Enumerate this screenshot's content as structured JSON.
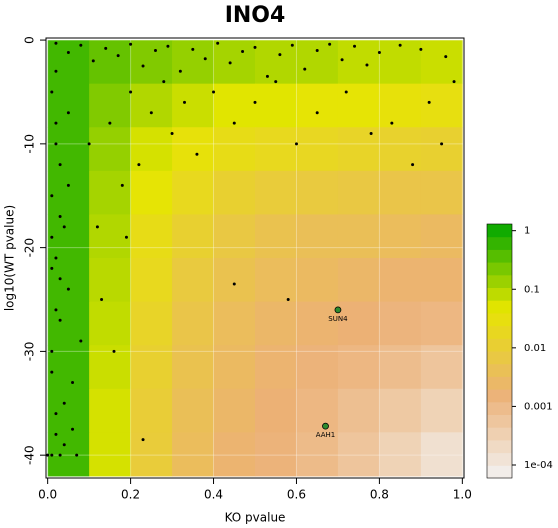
{
  "chart_data": {
    "type": "heatmap-scatter",
    "title": "INO4",
    "x_label": "KO pvalue",
    "y_label": "log10(WT pvalue)",
    "xlim": [
      -0.004,
      1.004
    ],
    "ylim": [
      -42.2,
      0.2
    ],
    "xticks": [
      {
        "value": 0,
        "label": "0.0"
      },
      0.2,
      0.4,
      0.6,
      0.8,
      {
        "value": 1,
        "label": "1.0"
      }
    ],
    "yticks": [
      0,
      -10,
      -20,
      -30,
      -40
    ],
    "heatmap": {
      "x_edges": [
        0,
        0.1,
        0.2,
        0.3,
        0.4,
        0.5,
        0.6,
        0.7,
        0.8,
        0.9,
        1
      ],
      "y_edges": [
        0,
        -4.2,
        -8.4,
        -12.6,
        -16.8,
        -21,
        -25.2,
        -29.4,
        -33.6,
        -37.8,
        -42
      ],
      "values": [
        [
          0.5,
          0.3,
          0.2,
          0.15,
          0.12,
          0.1,
          0.1,
          0.08,
          0.08,
          0.07
        ],
        [
          0.5,
          0.2,
          0.1,
          0.07,
          0.05,
          0.05,
          0.04,
          0.04,
          0.035,
          0.03
        ],
        [
          0.5,
          0.15,
          0.06,
          0.035,
          0.025,
          0.02,
          0.018,
          0.015,
          0.013,
          0.012
        ],
        [
          0.5,
          0.12,
          0.04,
          0.02,
          0.012,
          0.009,
          0.008,
          0.007,
          0.006,
          0.006
        ],
        [
          0.5,
          0.1,
          0.025,
          0.012,
          0.007,
          0.005,
          0.004,
          0.004,
          0.0035,
          0.003
        ],
        [
          0.5,
          0.09,
          0.02,
          0.008,
          0.005,
          0.0035,
          0.003,
          0.0025,
          0.002,
          0.002
        ],
        [
          0.5,
          0.08,
          0.015,
          0.006,
          0.0035,
          0.0025,
          0.002,
          0.0017,
          0.0014,
          0.0012
        ],
        [
          0.5,
          0.07,
          0.012,
          0.005,
          0.003,
          0.002,
          0.0015,
          0.0012,
          0.0009,
          0.0006
        ],
        [
          0.5,
          0.06,
          0.01,
          0.004,
          0.0025,
          0.0017,
          0.0012,
          0.0008,
          0.0005,
          0.0003
        ],
        [
          0.5,
          0.06,
          0.009,
          0.0035,
          0.002,
          0.0015,
          0.001,
          0.0006,
          0.0003,
          0.00015
        ]
      ]
    },
    "color_stops": [
      "#F2F2F2",
      "#ECB176",
      "#E6E600",
      "#00A600"
    ],
    "colorbar_lim": [
      6e-05,
      1.3
    ],
    "colorbar_ticks": [
      1,
      0.1,
      0.01,
      0.001,
      {
        "value": 0.0001,
        "label": "1e-04"
      }
    ],
    "grid": true,
    "point_color": "#000000",
    "points": {
      "x": [
        0.02,
        0.05,
        0.08,
        0.11,
        0.14,
        0.17,
        0.2,
        0.23,
        0.26,
        0.29,
        0.32,
        0.35,
        0.38,
        0.41,
        0.44,
        0.47,
        0.5,
        0.53,
        0.56,
        0.59,
        0.62,
        0.65,
        0.68,
        0.71,
        0.74,
        0.77,
        0.8,
        0.85,
        0.9,
        0.96,
        0.01,
        0.02,
        0.03,
        0.01,
        0.04,
        0.02,
        0.05,
        0.03,
        0.01,
        0.06,
        0.02,
        0.04,
        0.01,
        0.03,
        0.07,
        0.02,
        0.05,
        0.01,
        0.03,
        0.02,
        0.08,
        0.01,
        0.04,
        0.02,
        0.06,
        0.01,
        0.03,
        0.0,
        0.02,
        0.05,
        0.1,
        0.12,
        0.15,
        0.18,
        0.2,
        0.22,
        0.25,
        0.28,
        0.3,
        0.33,
        0.36,
        0.4,
        0.45,
        0.5,
        0.55,
        0.6,
        0.65,
        0.72,
        0.78,
        0.83,
        0.88,
        0.92,
        0.95,
        0.98,
        0.13,
        0.16,
        0.19,
        0.23,
        0.58,
        0.45
      ],
      "y": [
        -0.3,
        -1.2,
        -0.5,
        -2,
        -0.8,
        -1.5,
        -0.4,
        -2.5,
        -1,
        -0.6,
        -3,
        -0.9,
        -1.8,
        -0.3,
        -2.2,
        -1.1,
        -0.7,
        -3.5,
        -1.4,
        -0.5,
        -2.8,
        -1,
        -0.4,
        -1.9,
        -0.6,
        -2.4,
        -1.2,
        -0.5,
        -0.9,
        -1.6,
        -5,
        -8,
        -12,
        -15,
        -18,
        -21,
        -24,
        -27,
        -30,
        -33,
        -36,
        -39,
        -40,
        -40,
        -40,
        -10,
        -14,
        -19,
        -23,
        -26,
        -29,
        -32,
        -35,
        -38,
        -37.5,
        -22,
        -17,
        -40,
        -3,
        -7,
        -10,
        -18,
        -8,
        -14,
        -5,
        -12,
        -7,
        -4,
        -9,
        -6,
        -11,
        -5,
        -8,
        -6,
        -4,
        -10,
        -7,
        -5,
        -9,
        -8,
        -12,
        -6,
        -10,
        -4,
        -25,
        -30,
        -19,
        -38.5,
        -25,
        -23.5
      ]
    },
    "highlight_color": "#2e8b2e",
    "highlights": [
      {
        "label": "SUN4",
        "x": 0.7,
        "y": -26
      },
      {
        "label": "AAH1",
        "x": 0.67,
        "y": -37.2
      }
    ]
  }
}
